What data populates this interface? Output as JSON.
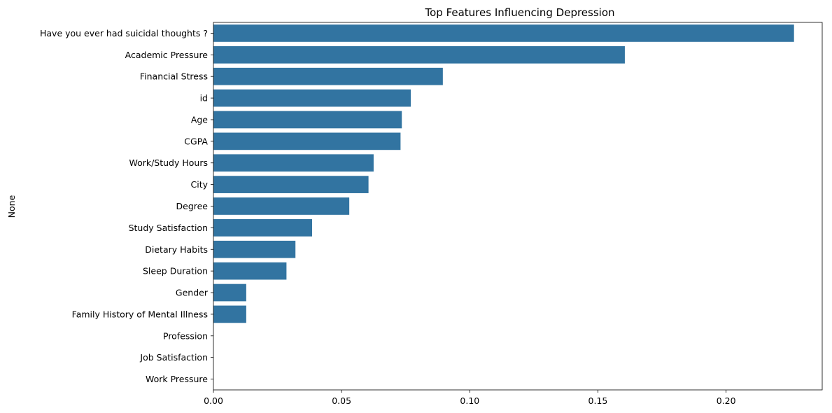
{
  "chart_data": {
    "type": "bar",
    "orientation": "horizontal",
    "title": "Top Features Influencing Depression",
    "xlabel": "",
    "ylabel": "None",
    "xlim": [
      0,
      0.2375
    ],
    "xticks": [
      "0.00",
      "0.05",
      "0.10",
      "0.15",
      "0.20"
    ],
    "xtick_values": [
      0.0,
      0.05,
      0.1,
      0.15,
      0.2
    ],
    "grid": false,
    "legend": "none",
    "bar_color": "#3274a1",
    "categories": [
      "Have you ever had suicidal thoughts ?",
      "Academic Pressure",
      "Financial Stress",
      "id",
      "Age",
      "CGPA",
      "Work/Study Hours",
      "City",
      "Degree",
      "Study Satisfaction",
      "Dietary Habits",
      "Sleep Duration",
      "Gender",
      "Family History of Mental Illness",
      "Profession",
      "Job Satisfaction",
      "Work Pressure"
    ],
    "values": [
      0.2265,
      0.1605,
      0.0895,
      0.077,
      0.0735,
      0.073,
      0.0625,
      0.0605,
      0.053,
      0.0385,
      0.032,
      0.0285,
      0.0128,
      0.0128,
      0.0,
      0.0,
      0.0
    ]
  }
}
